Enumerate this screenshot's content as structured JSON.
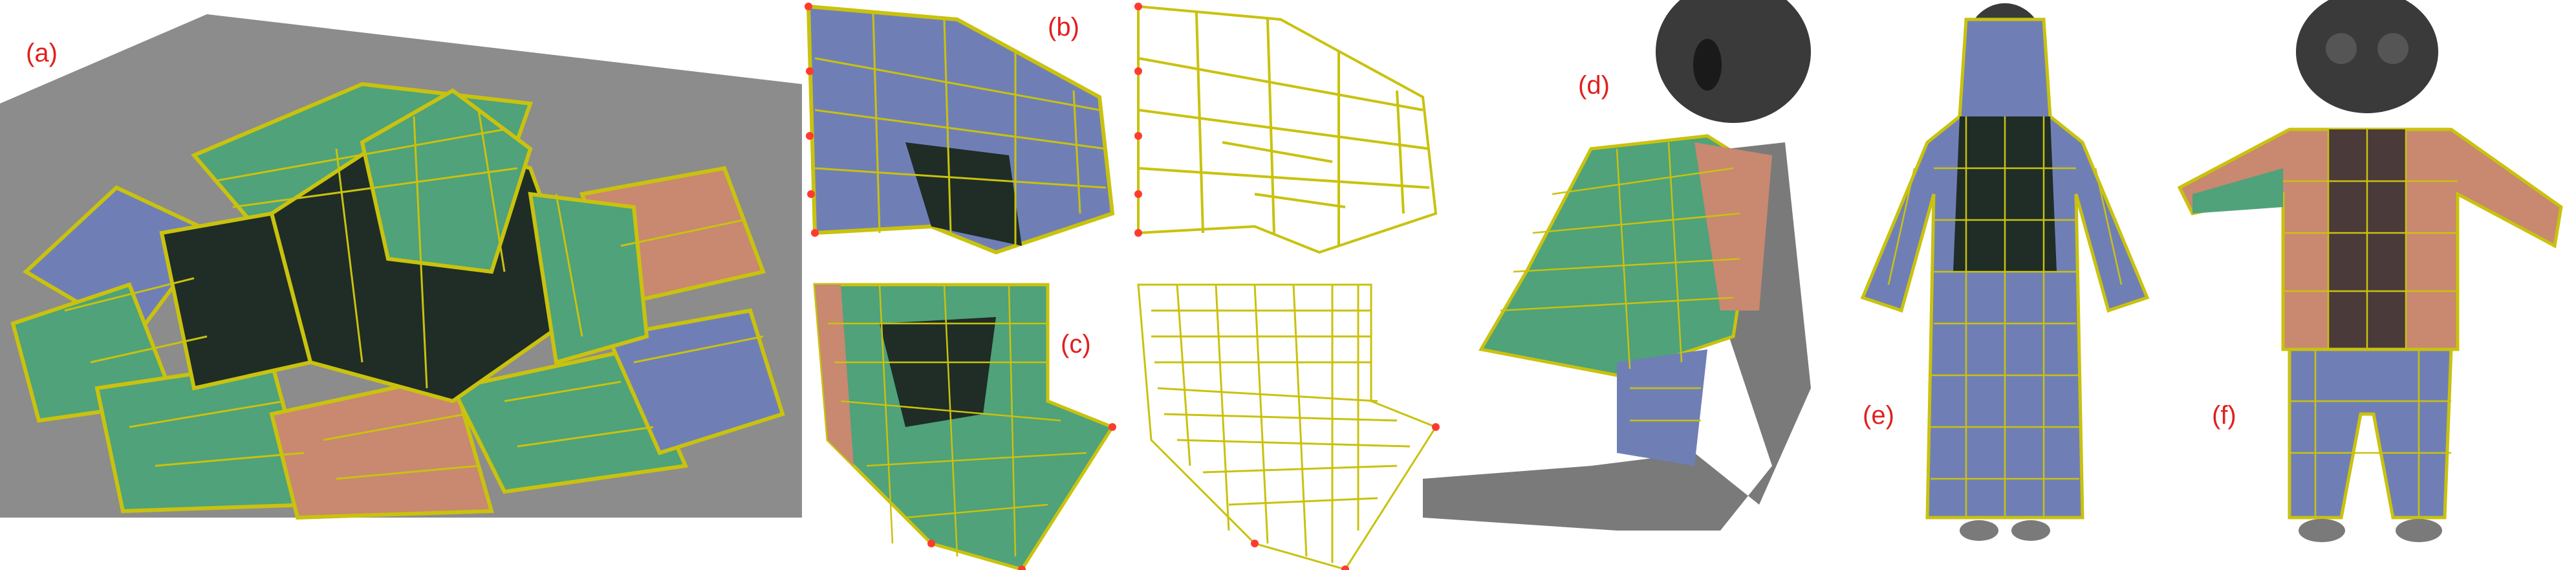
{
  "labels": {
    "a": "(a)",
    "b": "(b)",
    "c": "(c)",
    "d": "(d)",
    "e": "(e)",
    "f": "(f)"
  },
  "colors": {
    "background": "#ffffff",
    "ground": "#8c8c8c",
    "cloth_green": "#4fa27a",
    "cloth_blue": "#6f7fb6",
    "cloth_salmon": "#c98870",
    "cloth_dark": "#1f2d26",
    "seam": "#c9c20e",
    "corner_point": "#ff3b2f",
    "figure": "#7a7a7a",
    "label": "#e02020"
  }
}
